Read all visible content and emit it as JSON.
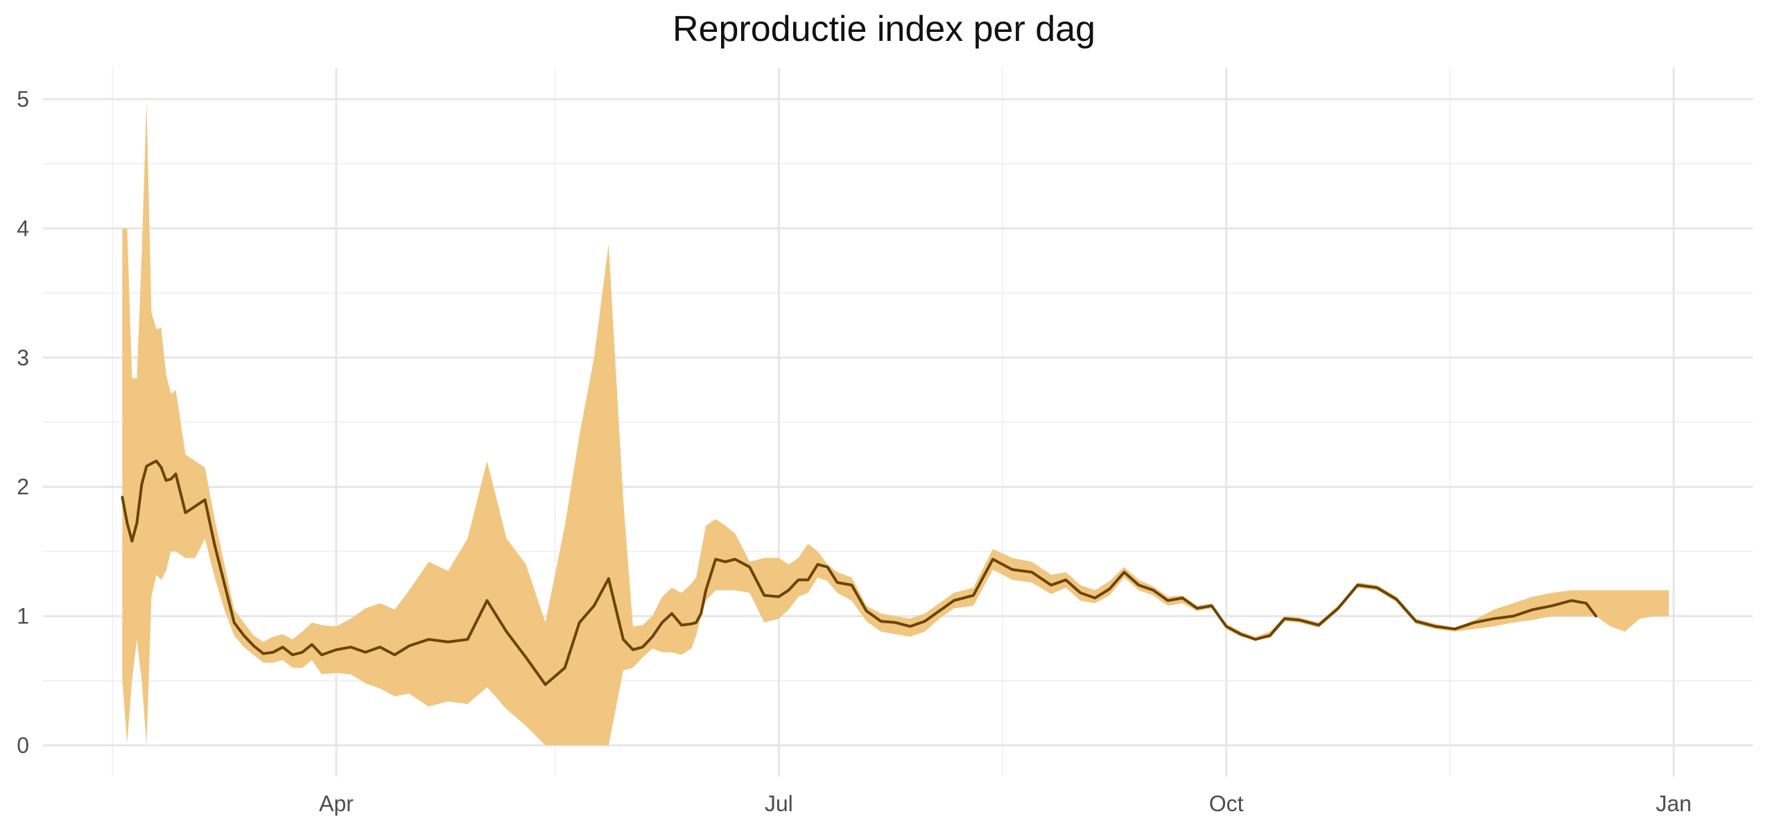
{
  "chart_data": {
    "type": "area",
    "title": "Reproductie index per dag",
    "xlabel": "",
    "ylabel": "",
    "x_axis": {
      "type": "date",
      "range": [
        "2020-02-13",
        "2021-01-11"
      ],
      "ticks": [
        {
          "date": "2020-04-01",
          "label": "Apr"
        },
        {
          "date": "2020-07-01",
          "label": "Jul"
        },
        {
          "date": "2020-10-01",
          "label": "Oct"
        },
        {
          "date": "2021-01-01",
          "label": "Jan"
        }
      ],
      "minor_ticks": [
        "2020-02-15",
        "2020-05-16",
        "2020-08-16",
        "2020-11-16"
      ]
    },
    "y_axis": {
      "range": [
        0,
        5.25
      ],
      "ticks": [
        0,
        1,
        2,
        3,
        4,
        5
      ],
      "minor_ticks": [
        0.5,
        1.5,
        2.5,
        3.5,
        4.5
      ]
    },
    "grid": true,
    "legend": "none",
    "colors": {
      "band": "#f0c680",
      "line": "#6b4408",
      "grid": "#e6e6e6"
    },
    "series": [
      {
        "role": "estimate",
        "x": [
          "2020-02-17",
          "2020-02-18",
          "2020-02-19",
          "2020-02-20",
          "2020-02-21",
          "2020-02-22",
          "2020-02-23",
          "2020-02-24",
          "2020-02-25",
          "2020-02-26",
          "2020-02-27",
          "2020-02-28",
          "2020-03-01",
          "2020-03-03",
          "2020-03-05",
          "2020-03-07",
          "2020-03-09",
          "2020-03-11",
          "2020-03-13",
          "2020-03-15",
          "2020-03-17",
          "2020-03-19",
          "2020-03-21",
          "2020-03-23",
          "2020-03-25",
          "2020-03-27",
          "2020-03-29",
          "2020-04-01",
          "2020-04-04",
          "2020-04-07",
          "2020-04-10",
          "2020-04-13",
          "2020-04-16",
          "2020-04-20",
          "2020-04-24",
          "2020-04-28",
          "2020-05-02",
          "2020-05-06",
          "2020-05-10",
          "2020-05-14",
          "2020-05-18",
          "2020-05-21",
          "2020-05-24",
          "2020-05-27",
          "2020-05-30",
          "2020-06-01",
          "2020-06-03",
          "2020-06-05",
          "2020-06-07",
          "2020-06-09",
          "2020-06-11",
          "2020-06-13",
          "2020-06-14",
          "2020-06-15",
          "2020-06-16",
          "2020-06-18",
          "2020-06-20",
          "2020-06-22",
          "2020-06-25",
          "2020-06-28",
          "2020-07-01",
          "2020-07-03",
          "2020-07-05",
          "2020-07-07",
          "2020-07-09",
          "2020-07-11",
          "2020-07-13",
          "2020-07-16",
          "2020-07-19",
          "2020-07-22",
          "2020-07-25",
          "2020-07-28",
          "2020-07-31",
          "2020-08-03",
          "2020-08-06",
          "2020-08-10",
          "2020-08-14",
          "2020-08-18",
          "2020-08-22",
          "2020-08-26",
          "2020-08-29",
          "2020-09-01",
          "2020-09-04",
          "2020-09-07",
          "2020-09-10",
          "2020-09-13",
          "2020-09-16",
          "2020-09-19",
          "2020-09-22",
          "2020-09-25",
          "2020-09-28",
          "2020-10-01",
          "2020-10-04",
          "2020-10-07",
          "2020-10-10",
          "2020-10-13",
          "2020-10-16",
          "2020-10-20",
          "2020-10-24",
          "2020-10-28",
          "2020-11-01",
          "2020-11-05",
          "2020-11-09",
          "2020-11-13",
          "2020-11-17",
          "2020-11-21",
          "2020-11-25",
          "2020-11-29",
          "2020-12-03",
          "2020-12-07",
          "2020-12-11",
          "2020-12-14",
          "2020-12-16"
        ],
        "values": [
          1.92,
          1.72,
          1.58,
          1.72,
          2.02,
          2.16,
          2.18,
          2.2,
          2.15,
          2.05,
          2.06,
          2.1,
          1.8,
          1.85,
          1.9,
          1.55,
          1.25,
          0.95,
          0.85,
          0.77,
          0.71,
          0.72,
          0.76,
          0.7,
          0.72,
          0.78,
          0.7,
          0.74,
          0.76,
          0.72,
          0.76,
          0.7,
          0.77,
          0.82,
          0.8,
          0.82,
          1.12,
          0.88,
          0.68,
          0.47,
          0.6,
          0.95,
          1.08,
          1.29,
          0.82,
          0.74,
          0.76,
          0.84,
          0.95,
          1.02,
          0.93,
          0.94,
          0.95,
          1.02,
          1.2,
          1.44,
          1.42,
          1.44,
          1.38,
          1.16,
          1.15,
          1.2,
          1.28,
          1.28,
          1.4,
          1.38,
          1.26,
          1.24,
          1.04,
          0.96,
          0.95,
          0.92,
          0.96,
          1.04,
          1.12,
          1.16,
          1.44,
          1.36,
          1.34,
          1.24,
          1.28,
          1.18,
          1.14,
          1.21,
          1.34,
          1.24,
          1.2,
          1.12,
          1.14,
          1.06,
          1.08,
          0.92,
          0.86,
          0.82,
          0.85,
          0.98,
          0.97,
          0.93,
          1.06,
          1.24,
          1.22,
          1.13,
          0.96,
          0.92,
          0.9,
          0.95,
          0.98,
          1.0,
          1.05,
          1.08,
          1.12,
          1.1,
          1.0
        ]
      },
      {
        "role": "upper_bound",
        "x": [
          "2020-02-17",
          "2020-02-18",
          "2020-02-19",
          "2020-02-20",
          "2020-02-21",
          "2020-02-22",
          "2020-02-23",
          "2020-02-24",
          "2020-02-25",
          "2020-02-26",
          "2020-02-27",
          "2020-02-28",
          "2020-03-01",
          "2020-03-03",
          "2020-03-05",
          "2020-03-07",
          "2020-03-09",
          "2020-03-11",
          "2020-03-13",
          "2020-03-15",
          "2020-03-17",
          "2020-03-19",
          "2020-03-21",
          "2020-03-23",
          "2020-03-25",
          "2020-03-27",
          "2020-03-29",
          "2020-04-01",
          "2020-04-04",
          "2020-04-07",
          "2020-04-10",
          "2020-04-13",
          "2020-04-16",
          "2020-04-20",
          "2020-04-24",
          "2020-04-28",
          "2020-05-02",
          "2020-05-06",
          "2020-05-10",
          "2020-05-14",
          "2020-05-18",
          "2020-05-21",
          "2020-05-24",
          "2020-05-27",
          "2020-05-30",
          "2020-06-01",
          "2020-06-03",
          "2020-06-05",
          "2020-06-07",
          "2020-06-09",
          "2020-06-11",
          "2020-06-13",
          "2020-06-14",
          "2020-06-15",
          "2020-06-16",
          "2020-06-18",
          "2020-06-20",
          "2020-06-22",
          "2020-06-25",
          "2020-06-28",
          "2020-07-01",
          "2020-07-03",
          "2020-07-05",
          "2020-07-07",
          "2020-07-09",
          "2020-07-11",
          "2020-07-13",
          "2020-07-16",
          "2020-07-19",
          "2020-07-22",
          "2020-07-25",
          "2020-07-28",
          "2020-07-31",
          "2020-08-03",
          "2020-08-06",
          "2020-08-10",
          "2020-08-14",
          "2020-08-18",
          "2020-08-22",
          "2020-08-26",
          "2020-08-29",
          "2020-09-01",
          "2020-09-04",
          "2020-09-07",
          "2020-09-10",
          "2020-09-13",
          "2020-09-16",
          "2020-09-19",
          "2020-09-22",
          "2020-09-25",
          "2020-09-28",
          "2020-10-01",
          "2020-10-04",
          "2020-10-07",
          "2020-10-10",
          "2020-10-13",
          "2020-10-16",
          "2020-10-20",
          "2020-10-24",
          "2020-10-28",
          "2020-11-01",
          "2020-11-05",
          "2020-11-09",
          "2020-11-13",
          "2020-11-17",
          "2020-11-21",
          "2020-11-25",
          "2020-11-29",
          "2020-12-03",
          "2020-12-07",
          "2020-12-11",
          "2020-12-14",
          "2020-12-16",
          "2020-12-19",
          "2020-12-22",
          "2020-12-25",
          "2020-12-28",
          "2020-12-31"
        ],
        "values": [
          4.0,
          4.0,
          2.84,
          2.84,
          3.8,
          4.98,
          3.35,
          3.22,
          3.23,
          2.87,
          2.72,
          2.75,
          2.25,
          2.2,
          2.15,
          1.75,
          1.4,
          1.05,
          0.95,
          0.85,
          0.8,
          0.84,
          0.86,
          0.82,
          0.88,
          0.95,
          0.93,
          0.92,
          0.98,
          1.06,
          1.1,
          1.05,
          1.2,
          1.42,
          1.35,
          1.6,
          2.2,
          1.6,
          1.4,
          0.95,
          1.7,
          2.4,
          3.0,
          3.88,
          1.9,
          0.92,
          0.93,
          1.0,
          1.15,
          1.22,
          1.18,
          1.25,
          1.3,
          1.5,
          1.7,
          1.75,
          1.7,
          1.64,
          1.42,
          1.45,
          1.45,
          1.4,
          1.45,
          1.56,
          1.5,
          1.4,
          1.34,
          1.3,
          1.08,
          1.02,
          1.0,
          0.98,
          1.02,
          1.1,
          1.18,
          1.22,
          1.52,
          1.45,
          1.42,
          1.32,
          1.34,
          1.24,
          1.2,
          1.27,
          1.38,
          1.28,
          1.23,
          1.15,
          1.16,
          1.08,
          1.1,
          0.94,
          0.88,
          0.84,
          0.88,
          1.0,
          0.99,
          0.95,
          1.08,
          1.26,
          1.24,
          1.15,
          0.98,
          0.94,
          0.91,
          0.97,
          1.05,
          1.1,
          1.15,
          1.18,
          1.2,
          1.2,
          1.2,
          1.2,
          1.2,
          1.2,
          1.2,
          1.2
        ]
      },
      {
        "role": "lower_bound",
        "x": [
          "2020-02-17",
          "2020-02-18",
          "2020-02-19",
          "2020-02-20",
          "2020-02-21",
          "2020-02-22",
          "2020-02-23",
          "2020-02-24",
          "2020-02-25",
          "2020-02-26",
          "2020-02-27",
          "2020-02-28",
          "2020-03-01",
          "2020-03-03",
          "2020-03-05",
          "2020-03-07",
          "2020-03-09",
          "2020-03-11",
          "2020-03-13",
          "2020-03-15",
          "2020-03-17",
          "2020-03-19",
          "2020-03-21",
          "2020-03-23",
          "2020-03-25",
          "2020-03-27",
          "2020-03-29",
          "2020-04-01",
          "2020-04-04",
          "2020-04-07",
          "2020-04-10",
          "2020-04-13",
          "2020-04-16",
          "2020-04-20",
          "2020-04-24",
          "2020-04-28",
          "2020-05-02",
          "2020-05-06",
          "2020-05-10",
          "2020-05-14",
          "2020-05-18",
          "2020-05-21",
          "2020-05-24",
          "2020-05-27",
          "2020-05-30",
          "2020-06-01",
          "2020-06-03",
          "2020-06-05",
          "2020-06-07",
          "2020-06-09",
          "2020-06-11",
          "2020-06-13",
          "2020-06-14",
          "2020-06-15",
          "2020-06-16",
          "2020-06-18",
          "2020-06-20",
          "2020-06-22",
          "2020-06-25",
          "2020-06-28",
          "2020-07-01",
          "2020-07-03",
          "2020-07-05",
          "2020-07-07",
          "2020-07-09",
          "2020-07-11",
          "2020-07-13",
          "2020-07-16",
          "2020-07-19",
          "2020-07-22",
          "2020-07-25",
          "2020-07-28",
          "2020-07-31",
          "2020-08-03",
          "2020-08-06",
          "2020-08-10",
          "2020-08-14",
          "2020-08-18",
          "2020-08-22",
          "2020-08-26",
          "2020-08-29",
          "2020-09-01",
          "2020-09-04",
          "2020-09-07",
          "2020-09-10",
          "2020-09-13",
          "2020-09-16",
          "2020-09-19",
          "2020-09-22",
          "2020-09-25",
          "2020-09-28",
          "2020-10-01",
          "2020-10-04",
          "2020-10-07",
          "2020-10-10",
          "2020-10-13",
          "2020-10-16",
          "2020-10-20",
          "2020-10-24",
          "2020-10-28",
          "2020-11-01",
          "2020-11-05",
          "2020-11-09",
          "2020-11-13",
          "2020-11-17",
          "2020-11-21",
          "2020-11-25",
          "2020-11-29",
          "2020-12-03",
          "2020-12-07",
          "2020-12-11",
          "2020-12-14",
          "2020-12-16",
          "2020-12-19",
          "2020-12-22",
          "2020-12-25",
          "2020-12-28",
          "2020-12-31"
        ],
        "values": [
          0.5,
          0.02,
          0.5,
          0.82,
          0.5,
          0.0,
          1.15,
          1.32,
          1.28,
          1.35,
          1.5,
          1.5,
          1.45,
          1.45,
          1.6,
          1.3,
          1.05,
          0.85,
          0.76,
          0.7,
          0.64,
          0.64,
          0.66,
          0.6,
          0.6,
          0.66,
          0.55,
          0.56,
          0.55,
          0.48,
          0.44,
          0.38,
          0.4,
          0.3,
          0.34,
          0.32,
          0.45,
          0.28,
          0.15,
          0.0,
          0.0,
          0.0,
          0.0,
          0.0,
          0.58,
          0.6,
          0.68,
          0.75,
          0.72,
          0.72,
          0.7,
          0.75,
          0.85,
          1.0,
          1.12,
          1.2,
          1.2,
          1.2,
          1.18,
          0.95,
          0.98,
          1.05,
          1.15,
          1.18,
          1.3,
          1.27,
          1.18,
          1.12,
          0.96,
          0.88,
          0.86,
          0.84,
          0.88,
          0.98,
          1.06,
          1.08,
          1.36,
          1.28,
          1.26,
          1.17,
          1.22,
          1.12,
          1.1,
          1.16,
          1.3,
          1.2,
          1.16,
          1.08,
          1.1,
          1.04,
          1.06,
          0.9,
          0.84,
          0.82,
          0.83,
          0.96,
          0.95,
          0.91,
          1.04,
          1.22,
          1.2,
          1.11,
          0.94,
          0.9,
          0.88,
          0.9,
          0.92,
          0.95,
          0.97,
          1.0,
          1.0,
          1.0,
          1.0,
          0.92,
          0.88,
          0.98,
          1.0,
          1.0
        ]
      }
    ]
  }
}
